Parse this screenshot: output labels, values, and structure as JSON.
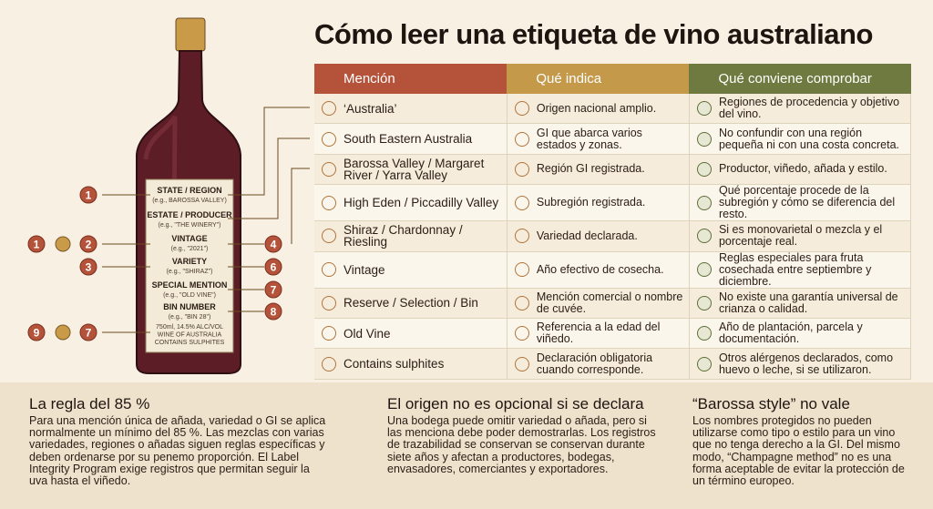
{
  "title": "Cómo leer una etiqueta de vino australiano",
  "bottle": {
    "label": [
      [
        "STATE / REGION",
        "(e.g., BAROSSA VALLEY)"
      ],
      [
        "ESTATE / PRODUCER",
        "(e.g., \"THE WINERY\")"
      ],
      [
        "VINTAGE",
        "(e.g., \"2021\")"
      ],
      [
        "VARIETY",
        "(e.g., \"SHIRAZ\")"
      ],
      [
        "SPECIAL MENTION",
        "(e.g., \"OLD VINE\")"
      ],
      [
        "BIN NUMBER",
        "(e.g., \"BIN 28\")"
      ]
    ],
    "footer": [
      "750ml, 14.5% ALC/VOL",
      "WINE OF AUSTRALIA",
      "CONTAINS SULPHITES"
    ],
    "left_markers": [
      "1",
      "1",
      "2",
      "3",
      "9",
      "7"
    ],
    "right_markers": [
      "4",
      "6",
      "7",
      "8"
    ]
  },
  "table": {
    "headers": [
      "Mención",
      "Qué indica",
      "Qué conviene comprobar"
    ],
    "rows": [
      [
        "‘Australia’",
        "Origen nacional amplio.",
        "Regiones de procedencia y objetivo del vino."
      ],
      [
        "South Eastern Australia",
        "GI que abarca varios estados y zonas.",
        "No confundir con una región pequeña ni con una costa concreta."
      ],
      [
        "Barossa Valley / Margaret River / Yarra Valley",
        "Región GI registrada.",
        "Productor, viñedo, añada y estilo."
      ],
      [
        "High Eden / Piccadilly Valley",
        "Subregión registrada.",
        "Qué porcentaje procede de la subregión y cómo se diferencia del resto."
      ],
      [
        "Shiraz / Chardonnay / Riesling",
        "Variedad declarada.",
        "Si es monovarietal o mezcla y el porcentaje real."
      ],
      [
        "Vintage",
        "Año efectivo de cosecha.",
        "Reglas especiales para fruta cosechada entre septiembre y diciembre."
      ],
      [
        "Reserve / Selection / Bin",
        "Mención comercial o nombre de cuvée.",
        "No existe una garantía universal de crianza o calidad."
      ],
      [
        "Old Vine",
        "Referencia a la edad del viñedo.",
        "Año de plantación, parcela y documentación."
      ],
      [
        "Contains sulphites",
        "Declaración obligatoria cuando corresponde.",
        "Otros alérgenos declarados, como huevo o leche, si se utilizaron."
      ]
    ]
  },
  "notes": [
    {
      "title": "La regla del 85 %",
      "body": "Para una mención única de añada, variedad o GI se aplica normalmente un mínimo del 85 %. Las mezclas con varias variedades, regiones o añadas siguen reglas específicas y deben ordenarse por su penemo proporción. El Label Integrity Program exige registros que permitan seguir la uva hasta el viñedo."
    },
    {
      "title": "El origen no es opcional si se declara",
      "body": "Una bodega puede omitir variedad o añada, pero si las menciona debe poder demostrarlas. Los registros de trazabilidad se conservan se conservan durante siete años y afectan a productores, bodegas, envasadores, comerciantes y exportadores."
    },
    {
      "title": "“Barossa style” no vale",
      "body": "Los nombres protegidos no pueden utilizarse como tipo o estilo para un vino que no tenga derecho a la GI. Del mismo modo, “Champagne method” no es una forma aceptable de evitar la protección de un término europeo."
    }
  ]
}
